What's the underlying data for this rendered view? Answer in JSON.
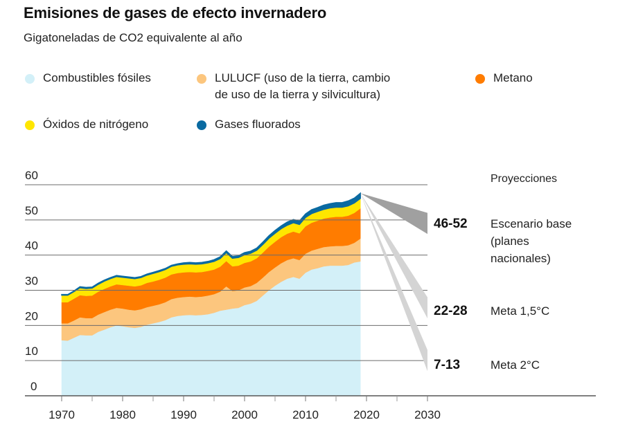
{
  "chart_data": {
    "type": "area",
    "title": "Emisiones de gases de efecto invernadero",
    "subtitle": "Gigatoneladas de CO2 equivalente al año",
    "xlabel": "",
    "ylabel": "",
    "xlim": [
      1970,
      2030
    ],
    "ylim": [
      0,
      60
    ],
    "grid": true,
    "x_ticks": [
      1970,
      1980,
      1990,
      2000,
      2010,
      2020,
      2030
    ],
    "x_minor_ticks": [
      1975,
      1985,
      1995,
      2005,
      2015,
      2025
    ],
    "y_ticks": [
      0,
      10,
      20,
      30,
      40,
      50,
      60
    ],
    "x": [
      1970,
      1971,
      1972,
      1973,
      1974,
      1975,
      1976,
      1977,
      1978,
      1979,
      1980,
      1981,
      1982,
      1983,
      1984,
      1985,
      1986,
      1987,
      1988,
      1989,
      1990,
      1991,
      1992,
      1993,
      1994,
      1995,
      1996,
      1997,
      1998,
      1999,
      2000,
      2001,
      2002,
      2003,
      2004,
      2005,
      2006,
      2007,
      2008,
      2009,
      2010,
      2011,
      2012,
      2013,
      2014,
      2015,
      2016,
      2017,
      2018,
      2019
    ],
    "series": [
      {
        "name": "Combustibles fósiles",
        "color": "#d3f0f8",
        "values": [
          15.8,
          15.7,
          16.5,
          17.3,
          17.2,
          17.2,
          18.2,
          18.8,
          19.5,
          20.0,
          19.8,
          19.5,
          19.3,
          19.6,
          20.2,
          20.6,
          21.0,
          21.5,
          22.3,
          22.7,
          22.9,
          23.0,
          22.9,
          23.0,
          23.2,
          23.6,
          24.2,
          24.5,
          24.8,
          25.0,
          25.8,
          26.2,
          27.0,
          28.5,
          30.0,
          31.3,
          32.4,
          33.3,
          33.8,
          33.3,
          35.0,
          35.9,
          36.3,
          36.8,
          37.0,
          37.0,
          37.0,
          37.2,
          37.9,
          38.2
        ]
      },
      {
        "name": "LULUCF (uso de la tierra, cambio de uso de la tierra y silvicultura)",
        "color": "#fcc67e",
        "values": [
          4.8,
          4.9,
          4.9,
          5.0,
          4.9,
          4.9,
          4.9,
          5.0,
          5.0,
          5.0,
          5.0,
          5.0,
          5.0,
          5.0,
          5.0,
          5.0,
          5.0,
          5.1,
          5.2,
          5.2,
          5.2,
          5.2,
          5.2,
          5.2,
          5.3,
          5.3,
          5.4,
          6.6,
          5.0,
          5.0,
          5.0,
          5.0,
          5.1,
          5.1,
          5.2,
          5.2,
          5.3,
          5.3,
          5.3,
          5.3,
          5.4,
          5.4,
          5.5,
          5.5,
          5.5,
          5.6,
          5.6,
          5.6,
          5.6,
          6.5
        ]
      },
      {
        "name": "Metano",
        "color": "#ff7c00",
        "values": [
          6.0,
          6.0,
          6.2,
          6.3,
          6.3,
          6.4,
          6.5,
          6.6,
          6.6,
          6.7,
          6.7,
          6.8,
          6.8,
          6.8,
          6.9,
          6.9,
          7.0,
          7.0,
          7.0,
          7.0,
          7.0,
          7.0,
          7.0,
          7.0,
          7.0,
          7.0,
          7.1,
          7.2,
          7.0,
          7.0,
          7.0,
          7.0,
          7.0,
          7.1,
          7.2,
          7.3,
          7.4,
          7.5,
          7.6,
          7.6,
          7.8,
          7.9,
          8.0,
          8.1,
          8.2,
          8.3,
          8.3,
          8.4,
          8.5,
          8.6
        ]
      },
      {
        "name": "Óxidos de nitrógeno",
        "color": "#ffe600",
        "values": [
          2.0,
          2.0,
          2.0,
          2.1,
          2.1,
          2.1,
          2.1,
          2.2,
          2.2,
          2.2,
          2.2,
          2.2,
          2.2,
          2.2,
          2.2,
          2.3,
          2.3,
          2.3,
          2.3,
          2.3,
          2.3,
          2.3,
          2.3,
          2.3,
          2.3,
          2.3,
          2.3,
          2.4,
          2.3,
          2.3,
          2.3,
          2.3,
          2.3,
          2.3,
          2.4,
          2.4,
          2.4,
          2.4,
          2.5,
          2.5,
          2.5,
          2.6,
          2.6,
          2.6,
          2.7,
          2.7,
          2.7,
          2.8,
          2.8,
          2.8
        ]
      },
      {
        "name": "Gases fluorados",
        "color": "#0a6aa1",
        "values": [
          0.2,
          0.2,
          0.2,
          0.3,
          0.3,
          0.3,
          0.3,
          0.3,
          0.3,
          0.3,
          0.3,
          0.3,
          0.3,
          0.3,
          0.3,
          0.3,
          0.3,
          0.3,
          0.3,
          0.3,
          0.4,
          0.4,
          0.4,
          0.4,
          0.4,
          0.5,
          0.5,
          0.5,
          0.5,
          0.5,
          0.6,
          0.6,
          0.6,
          0.7,
          0.7,
          0.8,
          0.8,
          0.9,
          0.9,
          1.0,
          1.0,
          1.1,
          1.1,
          1.2,
          1.2,
          1.3,
          1.3,
          1.4,
          1.4,
          1.5
        ]
      }
    ],
    "projections": {
      "heading": "Proyecciones",
      "start_year": 2019,
      "end_year": 2030,
      "scenarios": [
        {
          "range_label": "46-52",
          "label": "Escenario base\n(planes\nnacionales)",
          "low": 46,
          "high": 52,
          "color": "#a0a0a0"
        },
        {
          "range_label": "22-28",
          "label": "Meta 1,5°C",
          "low": 22,
          "high": 28,
          "color": "#d4d4d4"
        },
        {
          "range_label": "7-13",
          "label": "Meta 2°C",
          "low": 7,
          "high": 13,
          "color": "#d4d4d4"
        }
      ]
    }
  }
}
